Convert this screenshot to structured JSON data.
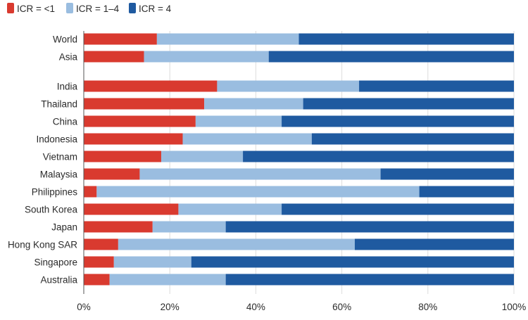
{
  "chart_data": {
    "type": "bar",
    "orientation": "horizontal",
    "stacked": true,
    "title": "",
    "xlabel": "",
    "ylabel": "",
    "xlim": [
      0,
      100
    ],
    "x_ticks": [
      0,
      20,
      40,
      60,
      80,
      100
    ],
    "x_tick_labels": [
      "0%",
      "20%",
      "40%",
      "60%",
      "80%",
      "100%"
    ],
    "grid": "vertical",
    "legend_position": "top-left",
    "categories": [
      "World",
      "Asia",
      "India",
      "Thailand",
      "China",
      "Indonesia",
      "Vietnam",
      "Malaysia",
      "Philippines",
      "South Korea",
      "Japan",
      "Hong Kong SAR",
      "Singapore",
      "Australia"
    ],
    "group_break_after": "Asia",
    "series": [
      {
        "name": "ICR = <1",
        "color": "#d93a2f",
        "values": [
          17,
          14,
          31,
          28,
          26,
          23,
          18,
          13,
          3,
          22,
          16,
          8,
          7,
          6
        ]
      },
      {
        "name": "ICR = 1–4",
        "color": "#9abde0",
        "values": [
          33,
          29,
          33,
          23,
          20,
          30,
          19,
          56,
          75,
          24,
          17,
          55,
          18,
          27
        ]
      },
      {
        "name": "ICR = 4",
        "color": "#1f5aa0",
        "values": [
          50,
          57,
          36,
          49,
          54,
          47,
          63,
          31,
          22,
          54,
          67,
          37,
          75,
          67
        ]
      }
    ]
  }
}
